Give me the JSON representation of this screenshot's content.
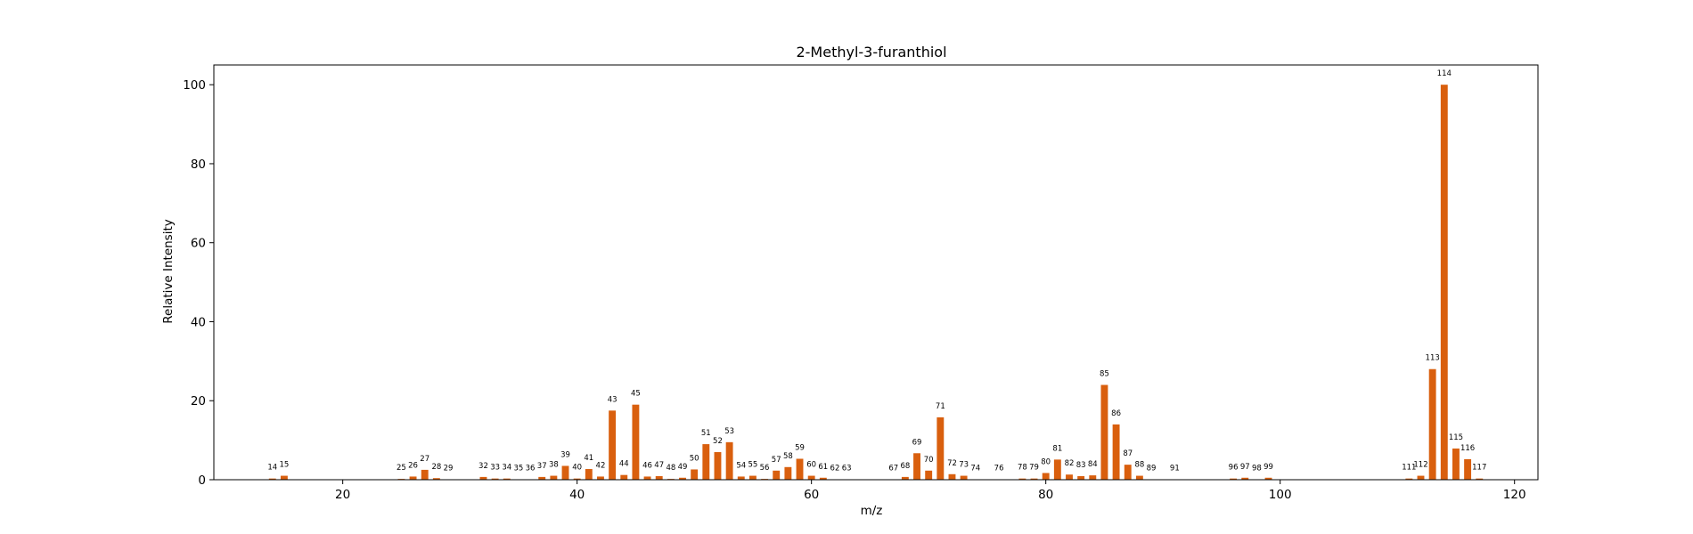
{
  "colors": {
    "bar": "#d95f0e",
    "axis": "#000000",
    "background": "#ffffff"
  },
  "chart_data": {
    "type": "bar",
    "title": "2-Methyl-3-furanthiol",
    "xlabel": "m/z",
    "ylabel": "Relative Intensity",
    "xlim": [
      9,
      122
    ],
    "ylim": [
      0,
      105
    ],
    "xticks": [
      20,
      40,
      60,
      80,
      100,
      120
    ],
    "yticks": [
      0,
      20,
      40,
      60,
      80,
      100
    ],
    "grid": false,
    "legend": "none",
    "x": [
      14,
      15,
      25,
      26,
      27,
      28,
      29,
      32,
      33,
      34,
      35,
      36,
      37,
      38,
      39,
      40,
      41,
      42,
      43,
      44,
      45,
      46,
      47,
      48,
      49,
      50,
      51,
      52,
      53,
      54,
      55,
      56,
      57,
      58,
      59,
      60,
      61,
      62,
      63,
      67,
      68,
      69,
      70,
      71,
      72,
      73,
      74,
      76,
      78,
      79,
      80,
      81,
      82,
      83,
      84,
      85,
      86,
      87,
      88,
      89,
      91,
      96,
      97,
      98,
      99,
      111,
      112,
      113,
      114,
      115,
      116,
      117
    ],
    "values": [
      0.3,
      1.0,
      0.2,
      0.8,
      2.5,
      0.4,
      0.1,
      0.7,
      0.3,
      0.3,
      0.1,
      0.1,
      0.7,
      1.0,
      3.5,
      0.3,
      2.7,
      0.8,
      17.5,
      1.2,
      19.0,
      0.8,
      0.9,
      0.2,
      0.5,
      2.6,
      9.0,
      7.0,
      9.5,
      0.8,
      1.0,
      0.2,
      2.3,
      3.2,
      5.3,
      1.0,
      0.5,
      0.1,
      0.1,
      0.1,
      0.7,
      6.7,
      2.3,
      15.8,
      1.4,
      1.0,
      0.1,
      0.1,
      0.3,
      0.3,
      1.7,
      5.1,
      1.3,
      0.9,
      1.1,
      24.0,
      14.0,
      3.8,
      1.0,
      0.1,
      0.1,
      0.3,
      0.5,
      0.1,
      0.5,
      0.3,
      1.0,
      28.0,
      100.0,
      7.9,
      5.2,
      0.3
    ]
  }
}
